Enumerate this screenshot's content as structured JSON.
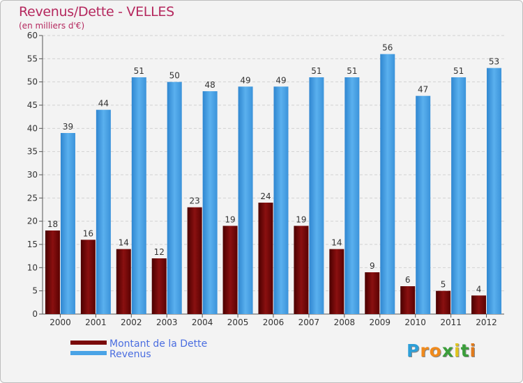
{
  "chart_data": {
    "type": "bar",
    "title": "Revenus/Dette - VELLES",
    "subtitle": "(en milliers d'€)",
    "categories": [
      "2000",
      "2001",
      "2002",
      "2003",
      "2004",
      "2005",
      "2006",
      "2007",
      "2008",
      "2009",
      "2010",
      "2011",
      "2012"
    ],
    "series": [
      {
        "name": "Montant de la Dette",
        "values": [
          18,
          16,
          14,
          12,
          23,
          19,
          24,
          19,
          14,
          9,
          6,
          5,
          4
        ],
        "color": "#7a0a0a"
      },
      {
        "name": "Revenus",
        "values": [
          39,
          44,
          51,
          50,
          48,
          49,
          49,
          51,
          51,
          56,
          47,
          51,
          53
        ],
        "color": "#4aa3e6"
      }
    ],
    "ylim": [
      0,
      60
    ],
    "yticks": [
      0,
      5,
      10,
      15,
      20,
      25,
      30,
      35,
      40,
      45,
      50,
      55,
      60
    ],
    "grid": true,
    "legend_position": "bottom-left"
  },
  "logo": {
    "letters": [
      "P",
      "r",
      "o",
      "x",
      "i",
      "t",
      "i"
    ],
    "colors": [
      "#2d9fd8",
      "#f08a1c",
      "#f08a1c",
      "#3a9e3a",
      "#e0c51e",
      "#3a9e3a",
      "#e07a1c"
    ]
  }
}
